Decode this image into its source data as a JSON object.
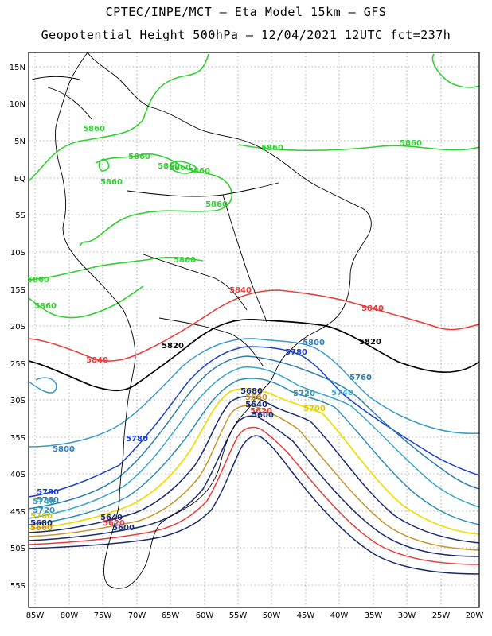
{
  "header": {
    "title_line1": "CPTEC/INPE/MCT –  Eta Model 15km – GFS",
    "title_line2": "Geopotential Height 500hPa – 12/04/2021 12UTC fct=237h"
  },
  "axes": {
    "lat_labels": [
      "15N",
      "10N",
      "5N",
      "EQ",
      "5S",
      "10S",
      "15S",
      "20S",
      "25S",
      "30S",
      "35S",
      "40S",
      "45S",
      "50S",
      "55S"
    ],
    "lon_labels": [
      "85W",
      "80W",
      "75W",
      "70W",
      "65W",
      "60W",
      "55W",
      "50W",
      "45W",
      "40W",
      "35W",
      "30W",
      "25W",
      "20W"
    ]
  },
  "contour_labels": [
    {
      "text": "5860",
      "color": "#2fd02f"
    },
    {
      "text": "5860",
      "color": "#2fd02f"
    },
    {
      "text": "5860",
      "color": "#2fd02f"
    },
    {
      "text": "5860",
      "color": "#2fd02f"
    },
    {
      "text": "5860",
      "color": "#2fd02f"
    },
    {
      "text": "5860",
      "color": "#2fd02f"
    },
    {
      "text": "5860",
      "color": "#2fd02f"
    },
    {
      "text": "5860",
      "color": "#2fd02f"
    },
    {
      "text": "5860",
      "color": "#2fd02f"
    },
    {
      "text": "5860",
      "color": "#2fd02f"
    },
    {
      "text": "5860",
      "color": "#2fd02f"
    },
    {
      "text": "5860",
      "color": "#2fd02f"
    },
    {
      "text": "5840",
      "color": "#e83c3c"
    },
    {
      "text": "5840",
      "color": "#e83c3c"
    },
    {
      "text": "5840",
      "color": "#e83c3c"
    },
    {
      "text": "5820",
      "color": "#000000"
    },
    {
      "text": "5820",
      "color": "#000000"
    },
    {
      "text": "5800",
      "color": "#2a7fbf"
    },
    {
      "text": "5800",
      "color": "#2a7fbf"
    },
    {
      "text": "5780",
      "color": "#1a3fd0"
    },
    {
      "text": "5780",
      "color": "#1a3fd0"
    },
    {
      "text": "5780",
      "color": "#1a3fd0"
    },
    {
      "text": "5760",
      "color": "#2e7fa8"
    },
    {
      "text": "5760",
      "color": "#2e7fa8"
    },
    {
      "text": "5740",
      "color": "#3aa6c9"
    },
    {
      "text": "5740",
      "color": "#3aa6c9"
    },
    {
      "text": "5720",
      "color": "#2e8fb5"
    },
    {
      "text": "5720",
      "color": "#2e8fb5"
    },
    {
      "text": "5700",
      "color": "#e0c800"
    },
    {
      "text": "5700",
      "color": "#e0c800"
    },
    {
      "text": "5680",
      "color": "#1a2a70"
    },
    {
      "text": "5680",
      "color": "#1a2a70"
    },
    {
      "text": "5660",
      "color": "#c8962a"
    },
    {
      "text": "5660",
      "color": "#c8962a"
    },
    {
      "text": "5640",
      "color": "#1a2a70"
    },
    {
      "text": "5640",
      "color": "#1a2a70"
    },
    {
      "text": "5620",
      "color": "#e83c3c"
    },
    {
      "text": "5620",
      "color": "#e83c3c"
    },
    {
      "text": "5600",
      "color": "#1a2a70"
    },
    {
      "text": "5600",
      "color": "#1a2a70"
    }
  ]
}
